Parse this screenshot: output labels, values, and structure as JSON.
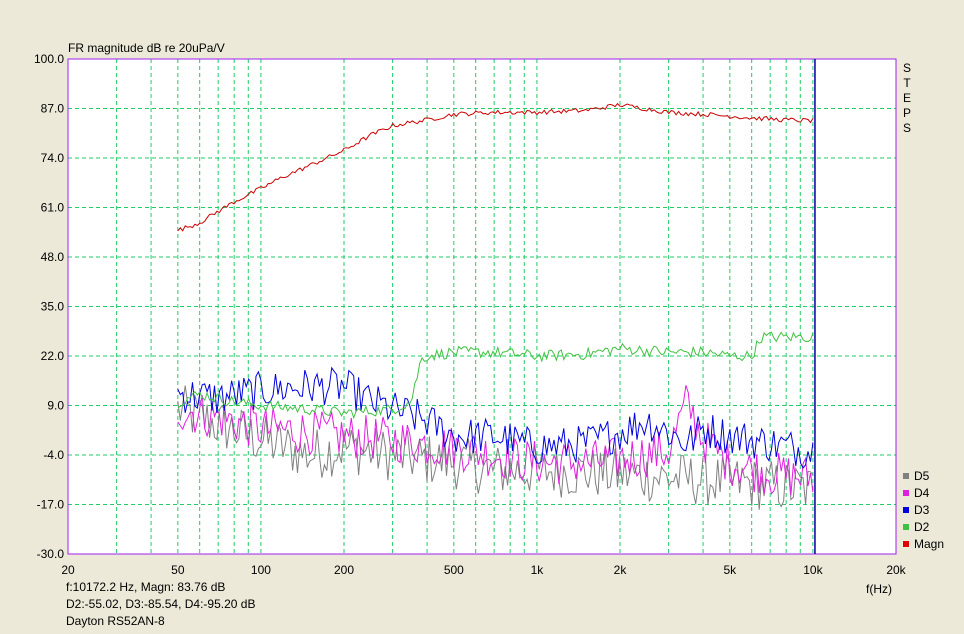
{
  "chart_data": {
    "type": "line",
    "title": "FR magnitude dB re 20uPa/V",
    "xlabel": "f(Hz)",
    "x_scale": "log",
    "xlim": [
      20,
      20000
    ],
    "ylim": [
      -30,
      100
    ],
    "x_tick_values": [
      20,
      50,
      100,
      200,
      500,
      1000,
      2000,
      5000,
      10000,
      20000
    ],
    "x_tick_labels": [
      "20",
      "50",
      "100",
      "200",
      "500",
      "1k",
      "2k",
      "5k",
      "10k",
      "20k"
    ],
    "y_tick_values": [
      100,
      87,
      74,
      61,
      48,
      35,
      22,
      9,
      -4,
      -17,
      -30
    ],
    "y_tick_labels": [
      "100.0",
      "87.0",
      "74.0",
      "61.0",
      "48.0",
      "35.0",
      "22.0",
      "9.0",
      "-4.0",
      "-17.0",
      "-30.0"
    ],
    "grid": true,
    "side_label": "STEPS",
    "cursor_x": 10172.2,
    "legend_position": "bottom-right",
    "legend": [
      {
        "name": "D5",
        "color": "#808080"
      },
      {
        "name": "D4",
        "color": "#e020e0"
      },
      {
        "name": "D3",
        "color": "#0000e0"
      },
      {
        "name": "D2",
        "color": "#40c040"
      },
      {
        "name": "Magn",
        "color": "#e00000"
      }
    ],
    "series": [
      {
        "name": "Magn",
        "color": "#cc0000",
        "x": [
          50,
          60,
          70,
          80,
          100,
          120,
          150,
          200,
          250,
          300,
          400,
          500,
          700,
          1000,
          1500,
          2000,
          3000,
          4000,
          5000,
          6000,
          8000,
          10000
        ],
        "y": [
          55,
          57,
          60,
          62.5,
          66,
          69,
          72,
          76,
          80,
          82.5,
          84,
          85.5,
          86,
          86,
          86.5,
          88,
          86,
          85.5,
          85,
          84.5,
          84,
          83.8
        ],
        "noise": 0.6
      },
      {
        "name": "D2",
        "color": "#40c040",
        "x": [
          50,
          60,
          80,
          100,
          150,
          200,
          300,
          350,
          380,
          400,
          500,
          700,
          1000,
          1500,
          2000,
          3000,
          4000,
          5000,
          6000,
          6500,
          7000,
          8000,
          10000
        ],
        "y": [
          10,
          12,
          10,
          9,
          8,
          7,
          8,
          10,
          21,
          22,
          23,
          23,
          22,
          22.5,
          24,
          23,
          23,
          22,
          22,
          27,
          27,
          27,
          27
        ],
        "noise": 1.5
      },
      {
        "name": "D3",
        "color": "#0000e0",
        "x": [
          50,
          70,
          100,
          150,
          200,
          250,
          300,
          400,
          500,
          700,
          1000,
          1500,
          2000,
          2500,
          3000,
          3500,
          4000,
          5000,
          7000,
          10000
        ],
        "y": [
          12,
          11,
          13,
          14,
          14,
          10,
          8,
          5,
          1,
          1,
          -2,
          -1,
          2,
          5,
          2,
          -1,
          3,
          1,
          -1,
          -3
        ],
        "noise": 5
      },
      {
        "name": "D4",
        "color": "#e020e0",
        "x": [
          50,
          70,
          100,
          150,
          200,
          300,
          500,
          700,
          1000,
          1500,
          2000,
          3000,
          3500,
          4000,
          5000,
          7000,
          10000
        ],
        "y": [
          8,
          6,
          3,
          2,
          1,
          0,
          -2,
          -4,
          -6,
          -6,
          -5,
          -3,
          10,
          0,
          -6,
          -9,
          -10
        ],
        "noise": 6
      },
      {
        "name": "D5",
        "color": "#808080",
        "x": [
          50,
          70,
          100,
          150,
          200,
          300,
          500,
          700,
          1000,
          2000,
          3000,
          5000,
          7000,
          10000
        ],
        "y": [
          8,
          4,
          0,
          -4,
          -2,
          -4,
          -6,
          -8,
          -8,
          -9,
          -10,
          -11,
          -12,
          -13
        ],
        "noise": 7
      }
    ]
  },
  "info": {
    "cursor_line": "f:10172.2 Hz, Magn: 83.76 dB",
    "delta_line": "D2:-55.02, D3:-85.54, D4:-95.20 dB",
    "driver_name": "Dayton RS52AN-8"
  }
}
